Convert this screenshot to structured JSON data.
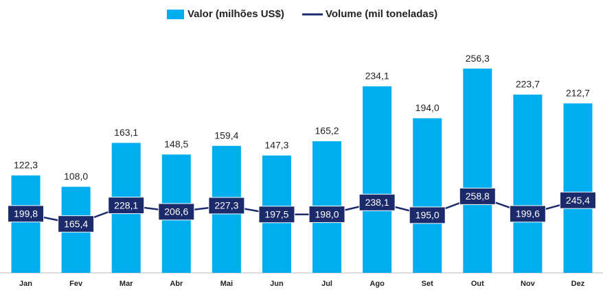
{
  "chart_data": {
    "type": "bar-line",
    "categories": [
      "Jan",
      "Fev",
      "Mar",
      "Abr",
      "Mai",
      "Jun",
      "Jul",
      "Ago",
      "Set",
      "Out",
      "Nov",
      "Dez"
    ],
    "series": [
      {
        "name": "Valor (milhões US$)",
        "type": "bar",
        "color": "#00adef",
        "values": [
          122.3,
          108.0,
          163.1,
          148.5,
          159.4,
          147.3,
          165.2,
          234.1,
          194.0,
          256.3,
          223.7,
          212.7
        ],
        "value_labels": [
          "122,3",
          "108,0",
          "163,1",
          "148,5",
          "159,4",
          "147,3",
          "165,2",
          "234,1",
          "194,0",
          "256,3",
          "223,7",
          "212,7"
        ]
      },
      {
        "name": "Volume (mil toneladas)",
        "type": "line",
        "axis": "y2",
        "color": "#1b2a6b",
        "values": [
          199.8,
          165.4,
          228.1,
          206.6,
          227.3,
          197.5,
          198.0,
          238.1,
          195.0,
          258.8,
          199.6,
          245.4
        ],
        "value_labels": [
          "199,8",
          "165,4",
          "228,1",
          "206,6",
          "227,3",
          "197,5",
          "198,0",
          "238,1",
          "195,0",
          "258,8",
          "199,6",
          "245,4"
        ]
      }
    ],
    "ylim": [
      0,
      308
    ],
    "y2lim": [
      0,
      830
    ]
  }
}
